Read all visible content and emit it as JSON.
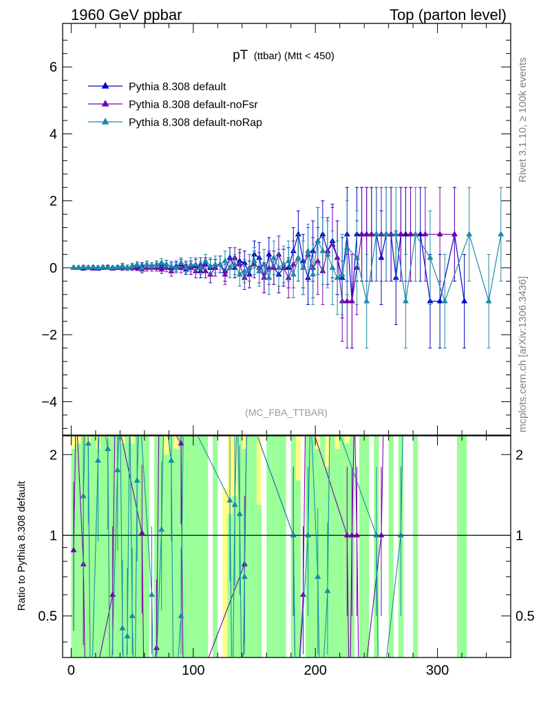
{
  "header": {
    "left": "1960 GeV ppbar",
    "right": "Top (parton level)"
  },
  "side": {
    "rivet": "Rivet 3.1.10, ≥ 100k events",
    "mcplots": "mcplots.cern.ch [arXiv:1306.3436]"
  },
  "plot": {
    "title_main": "pT",
    "title_sub": "(ttbar) (Mtt < 450)",
    "analysis": "(MC_FBA_TTBAR)",
    "ratio_ylabel": "Ratio to Pythia 8.308 default"
  },
  "colors": {
    "default": "#0000cc",
    "noFsr": "#7700aa",
    "noRap": "#1a8aa8",
    "band_green": "#99ff99",
    "band_yellow": "#ffff88"
  },
  "chart_data": {
    "type": "line",
    "x_ticks": [
      "0",
      "100",
      "200",
      "300"
    ],
    "xlim": [
      -7,
      360
    ],
    "main": {
      "ylim": [
        -5,
        7.3
      ],
      "y_ticks": [
        "−4",
        "−2",
        "0",
        "2",
        "4",
        "6"
      ],
      "y_tick_values": [
        -4,
        -2,
        0,
        2,
        4,
        6
      ]
    },
    "ratio": {
      "ylim": [
        0.35,
        2.35
      ],
      "y_ticks": [
        "0.5",
        "1",
        "2"
      ],
      "y_tick_values": [
        0.5,
        1,
        2
      ]
    },
    "series": [
      {
        "name": "Pythia 8.308 default",
        "color": "#0000cc",
        "x": [
          2,
          6,
          10,
          14,
          18,
          22,
          26,
          30,
          34,
          38,
          42,
          46,
          50,
          54,
          58,
          62,
          66,
          70,
          74,
          78,
          82,
          86,
          90,
          94,
          98,
          102,
          106,
          110,
          114,
          118,
          122,
          126,
          130,
          134,
          138,
          142,
          146,
          150,
          154,
          158,
          162,
          166,
          170,
          174,
          178,
          182,
          186,
          190,
          194,
          198,
          202,
          206,
          210,
          214,
          218,
          222,
          226,
          230,
          234,
          238,
          242,
          246,
          250,
          254,
          258,
          262,
          266,
          270,
          274,
          278,
          286,
          294,
          302,
          314,
          322
        ],
        "y": [
          0,
          0,
          -0.02,
          0,
          0,
          -0.02,
          0,
          0.02,
          -0.02,
          0,
          0.05,
          0,
          0.05,
          0,
          0.05,
          0.1,
          0.05,
          0.1,
          0.05,
          0.1,
          0,
          0.05,
          0.1,
          -0.05,
          0,
          0.05,
          -0.1,
          0.1,
          0,
          0,
          0.1,
          -0.1,
          0.3,
          0,
          0.2,
          0.15,
          -0.2,
          0.4,
          0.3,
          -0.3,
          0.4,
          0,
          -0.2,
          0,
          0,
          0.5,
          1,
          0.2,
          -0.3,
          0.5,
          0.8,
          1,
          0.5,
          0.8,
          0.3,
          -0.3,
          1,
          -1,
          1,
          1,
          1,
          1,
          1,
          0.3,
          1,
          1,
          -0.3,
          1,
          1,
          1,
          1,
          -1,
          -1,
          1,
          -1
        ],
        "err": [
          0.05,
          0.05,
          0.05,
          0.05,
          0.05,
          0.05,
          0.05,
          0.05,
          0.05,
          0.05,
          0.08,
          0.08,
          0.08,
          0.08,
          0.1,
          0.1,
          0.1,
          0.1,
          0.12,
          0.12,
          0.15,
          0.15,
          0.15,
          0.15,
          0.2,
          0.2,
          0.2,
          0.2,
          0.25,
          0.25,
          0.25,
          0.3,
          0.3,
          0.3,
          0.35,
          0.35,
          0.4,
          0.4,
          0.45,
          0.45,
          0.5,
          0.5,
          0.55,
          0.55,
          0.6,
          0.7,
          0.7,
          0.8,
          0.8,
          0.9,
          1,
          1,
          1,
          1.1,
          1.1,
          1.2,
          1.4,
          1.4,
          1.4,
          1.4,
          1.4,
          1.4,
          1.4,
          1.4,
          1.4,
          1.4,
          1.4,
          1.4,
          1.4,
          1.4,
          1.4,
          1.4,
          1.4,
          1.4,
          1.4
        ]
      },
      {
        "name": "Pythia 8.308 default-noFsr",
        "color": "#7700aa",
        "x": [
          2,
          6,
          10,
          14,
          18,
          22,
          26,
          30,
          34,
          38,
          42,
          46,
          50,
          54,
          58,
          62,
          66,
          70,
          74,
          78,
          82,
          86,
          90,
          94,
          98,
          102,
          106,
          110,
          114,
          118,
          122,
          126,
          130,
          134,
          138,
          142,
          146,
          150,
          154,
          158,
          162,
          166,
          170,
          174,
          178,
          182,
          186,
          190,
          194,
          198,
          202,
          206,
          210,
          214,
          218,
          222,
          226,
          230,
          234,
          238,
          242,
          246,
          250,
          254,
          258,
          262,
          270,
          278,
          290,
          302,
          314
        ],
        "y": [
          0,
          0,
          0,
          0,
          -0.02,
          0,
          0,
          0,
          -0.02,
          0,
          0,
          0,
          0,
          0.02,
          -0.05,
          0,
          0,
          0,
          -0.05,
          0,
          -0.1,
          0,
          0,
          0.05,
          0,
          -0.1,
          0.1,
          -0.1,
          -0.2,
          0,
          0.1,
          -0.2,
          0,
          0.3,
          0.1,
          -0.3,
          0,
          0.1,
          0,
          -0.3,
          0,
          0,
          0.4,
          0,
          -0.3,
          0.1,
          0.3,
          0,
          0.4,
          0,
          0.2,
          -0.1,
          0.5,
          0.7,
          0.3,
          -1,
          -1,
          -1,
          0,
          1,
          1,
          1,
          1,
          1,
          1,
          1,
          1,
          1,
          1,
          1,
          1
        ],
        "err": [
          0.05,
          0.05,
          0.05,
          0.05,
          0.05,
          0.05,
          0.05,
          0.05,
          0.05,
          0.05,
          0.08,
          0.08,
          0.08,
          0.08,
          0.1,
          0.1,
          0.1,
          0.1,
          0.12,
          0.12,
          0.15,
          0.15,
          0.15,
          0.15,
          0.2,
          0.2,
          0.2,
          0.2,
          0.25,
          0.25,
          0.25,
          0.3,
          0.3,
          0.3,
          0.35,
          0.35,
          0.4,
          0.4,
          0.45,
          0.45,
          0.5,
          0.5,
          0.55,
          0.55,
          0.6,
          0.7,
          0.7,
          0.8,
          0.8,
          0.9,
          1,
          1,
          1,
          1.1,
          1.1,
          1.2,
          1.4,
          1.4,
          1.4,
          1.4,
          1.4,
          1.4,
          1.4,
          1.4,
          1.4,
          1.4,
          1.4,
          1.4,
          1.4,
          1.4,
          1.4
        ]
      },
      {
        "name": "Pythia 8.308 default-noRap",
        "color": "#1a8aa8",
        "x": [
          2,
          6,
          10,
          14,
          18,
          22,
          26,
          30,
          34,
          38,
          42,
          46,
          50,
          54,
          58,
          62,
          66,
          70,
          74,
          78,
          82,
          86,
          90,
          94,
          98,
          102,
          106,
          110,
          114,
          118,
          122,
          126,
          130,
          134,
          138,
          142,
          146,
          150,
          154,
          158,
          162,
          166,
          170,
          174,
          178,
          182,
          186,
          190,
          194,
          198,
          202,
          206,
          210,
          214,
          218,
          222,
          226,
          234,
          242,
          250,
          258,
          266,
          274,
          282,
          294,
          306,
          326,
          342,
          352
        ],
        "y": [
          0,
          0,
          0.02,
          0,
          0.02,
          0,
          0.02,
          0,
          0,
          0.02,
          0.05,
          0,
          0.05,
          0.1,
          0,
          0.1,
          0.05,
          0.1,
          0.15,
          0.1,
          0.05,
          0,
          0.15,
          0,
          0.1,
          0.1,
          0,
          0.2,
          0.05,
          0.1,
          0.1,
          0.2,
          0,
          0.1,
          -0.2,
          -0.1,
          0,
          0.2,
          -0.1,
          0.1,
          -0.3,
          0.3,
          0,
          0.1,
          0.2,
          -0.2,
          0.3,
          0,
          0.5,
          -0.2,
          0.8,
          0.5,
          0.4,
          0,
          -0.3,
          -0.2,
          0.6,
          0.3,
          -1,
          1,
          1,
          1,
          -1,
          1,
          0.3,
          -1,
          1,
          -1,
          1
        ],
        "err": [
          0.05,
          0.05,
          0.05,
          0.05,
          0.05,
          0.05,
          0.05,
          0.05,
          0.05,
          0.05,
          0.08,
          0.08,
          0.08,
          0.08,
          0.1,
          0.1,
          0.1,
          0.1,
          0.12,
          0.12,
          0.15,
          0.15,
          0.15,
          0.15,
          0.2,
          0.2,
          0.2,
          0.2,
          0.25,
          0.25,
          0.25,
          0.3,
          0.3,
          0.3,
          0.35,
          0.35,
          0.4,
          0.4,
          0.45,
          0.45,
          0.5,
          0.5,
          0.55,
          0.55,
          0.6,
          0.7,
          0.7,
          0.8,
          0.8,
          0.9,
          1,
          1,
          1,
          1.1,
          1.1,
          1.2,
          1.4,
          1.4,
          1.4,
          1.4,
          1.4,
          1.4,
          1.4,
          1.4,
          1.4,
          1.4,
          1.4,
          1.4,
          1.4
        ]
      }
    ],
    "ratio_series": [
      {
        "name": "Pythia 8.308 default-noFsr",
        "x": [
          2,
          10,
          34,
          58,
          70,
          90,
          142,
          182,
          190,
          226,
          230,
          234,
          254
        ],
        "y": [
          0.88,
          0.78,
          0.6,
          1.02,
          0.38,
          2.2,
          0.78,
          1,
          0.6,
          1,
          1,
          1,
          1
        ]
      },
      {
        "name": "Pythia 8.308 default-noRap",
        "x": [
          10,
          14,
          22,
          30,
          38,
          42,
          46,
          50,
          54,
          66,
          74,
          82,
          90,
          130,
          134,
          138,
          142,
          182,
          194,
          202,
          210,
          250,
          270
        ],
        "y": [
          1.4,
          2.2,
          1.9,
          2.1,
          1.75,
          0.45,
          0.42,
          0.5,
          1.6,
          0.6,
          1.05,
          1.9,
          0.5,
          1.35,
          1.3,
          1.2,
          0.7,
          1,
          1,
          0.7,
          0.62,
          1,
          1
        ]
      }
    ],
    "ratio_bands": {
      "edges": [
        0,
        4,
        8,
        12,
        16,
        20,
        24,
        28,
        32,
        36,
        40,
        44,
        48,
        52,
        56,
        60,
        64,
        68,
        72,
        76,
        80,
        84,
        88,
        92,
        96,
        100,
        104,
        108,
        112,
        116,
        120,
        124,
        128,
        132,
        136,
        140,
        144,
        148,
        152,
        156,
        160,
        164,
        168,
        172,
        176,
        180,
        184,
        188,
        192,
        196,
        200,
        204,
        208,
        212,
        216,
        220,
        224,
        228,
        232,
        236,
        240,
        244,
        248,
        252,
        256,
        260,
        264,
        268,
        272,
        276,
        280,
        284,
        288,
        292,
        296,
        300,
        304,
        308,
        312,
        316,
        320,
        324
      ],
      "green_lo": [
        0.35,
        0.35,
        0.35,
        0.35,
        0.35,
        0.35,
        0.35,
        0.35,
        0.35,
        0.35,
        0.35,
        0.35,
        0.35,
        0.35,
        0.35,
        0.35,
        0.35,
        0.35,
        0.35,
        0.35,
        0.35,
        0.35,
        0.35,
        0.35,
        0.35,
        0.35,
        0.35,
        0.35,
        0.35,
        0.35,
        0.35,
        0.35,
        0.35,
        0.35,
        0.35,
        0.35,
        0.35,
        0.35,
        0.35,
        0.35,
        0.35,
        0.35,
        0.35,
        0.35,
        0.35,
        0.35,
        0.35,
        0.35,
        0.35,
        0.35,
        0.35,
        0.35,
        0.35,
        0.35,
        0.35,
        0.35,
        0.35,
        0.35,
        0.35,
        0.35,
        0.35,
        0.35,
        0.35,
        0.35,
        0.35,
        0.35,
        0.35,
        0.35,
        0.35,
        0.35,
        0.35,
        0.35,
        0.35,
        0.35,
        0.35,
        0.35,
        0.35,
        0.35,
        0.35,
        0.35,
        0.35
      ],
      "green_hi": [
        2.1,
        2.2,
        2.35,
        2.2,
        2.35,
        2.1,
        2.35,
        2.3,
        2.35,
        2.35,
        2.2,
        2.35,
        2.2,
        2.35,
        2.35,
        2.35,
        0.35,
        2.35,
        2.35,
        2.0,
        2.35,
        2.1,
        2.35,
        2.35,
        2.35,
        2.35,
        2.35,
        2.35,
        0.35,
        2.35,
        0.35,
        0.35,
        1.2,
        1.4,
        2.35,
        2.1,
        2.35,
        2.35,
        1.3,
        0.35,
        2.35,
        2.35,
        2.35,
        2.35,
        0.35,
        2.35,
        1.6,
        0.35,
        2.35,
        2.35,
        2.1,
        2.35,
        1.8,
        2.35,
        2.1,
        2.35,
        2.2,
        2.35,
        0.35,
        2.35,
        2.35,
        0.35,
        2.35,
        0.35,
        0.35,
        2.35,
        0.35,
        2.35,
        0.35,
        0.35,
        2.35,
        0.35,
        0.35,
        0.35,
        0.35,
        0.35,
        0.35,
        0.35,
        0.35,
        2.35,
        2.35
      ],
      "yellow_hi": [
        2.35,
        2.35,
        2.35,
        2.35,
        2.35,
        2.35,
        2.35,
        2.35,
        2.35,
        2.35,
        2.35,
        2.35,
        2.35,
        2.35,
        2.35,
        2.35,
        0.35,
        2.35,
        2.35,
        2.35,
        2.35,
        2.35,
        2.35,
        2.35,
        2.35,
        2.35,
        2.35,
        2.35,
        0.35,
        2.35,
        0.35,
        1.5,
        2.35,
        2.35,
        2.35,
        2.35,
        2.35,
        2.35,
        2.35,
        0.35,
        2.35,
        2.35,
        2.35,
        2.35,
        0.35,
        2.35,
        2.35,
        0.35,
        2.35,
        2.35,
        2.35,
        2.35,
        2.35,
        2.35,
        2.35,
        2.35,
        2.35,
        2.35,
        0.35,
        2.35,
        2.35,
        0.35,
        2.35,
        0.35,
        0.35,
        2.35,
        0.35,
        2.35,
        0.35,
        0.35,
        2.35,
        0.35,
        0.35,
        0.35,
        0.35,
        0.35,
        0.35,
        0.35,
        0.35,
        2.35,
        2.35
      ]
    }
  }
}
